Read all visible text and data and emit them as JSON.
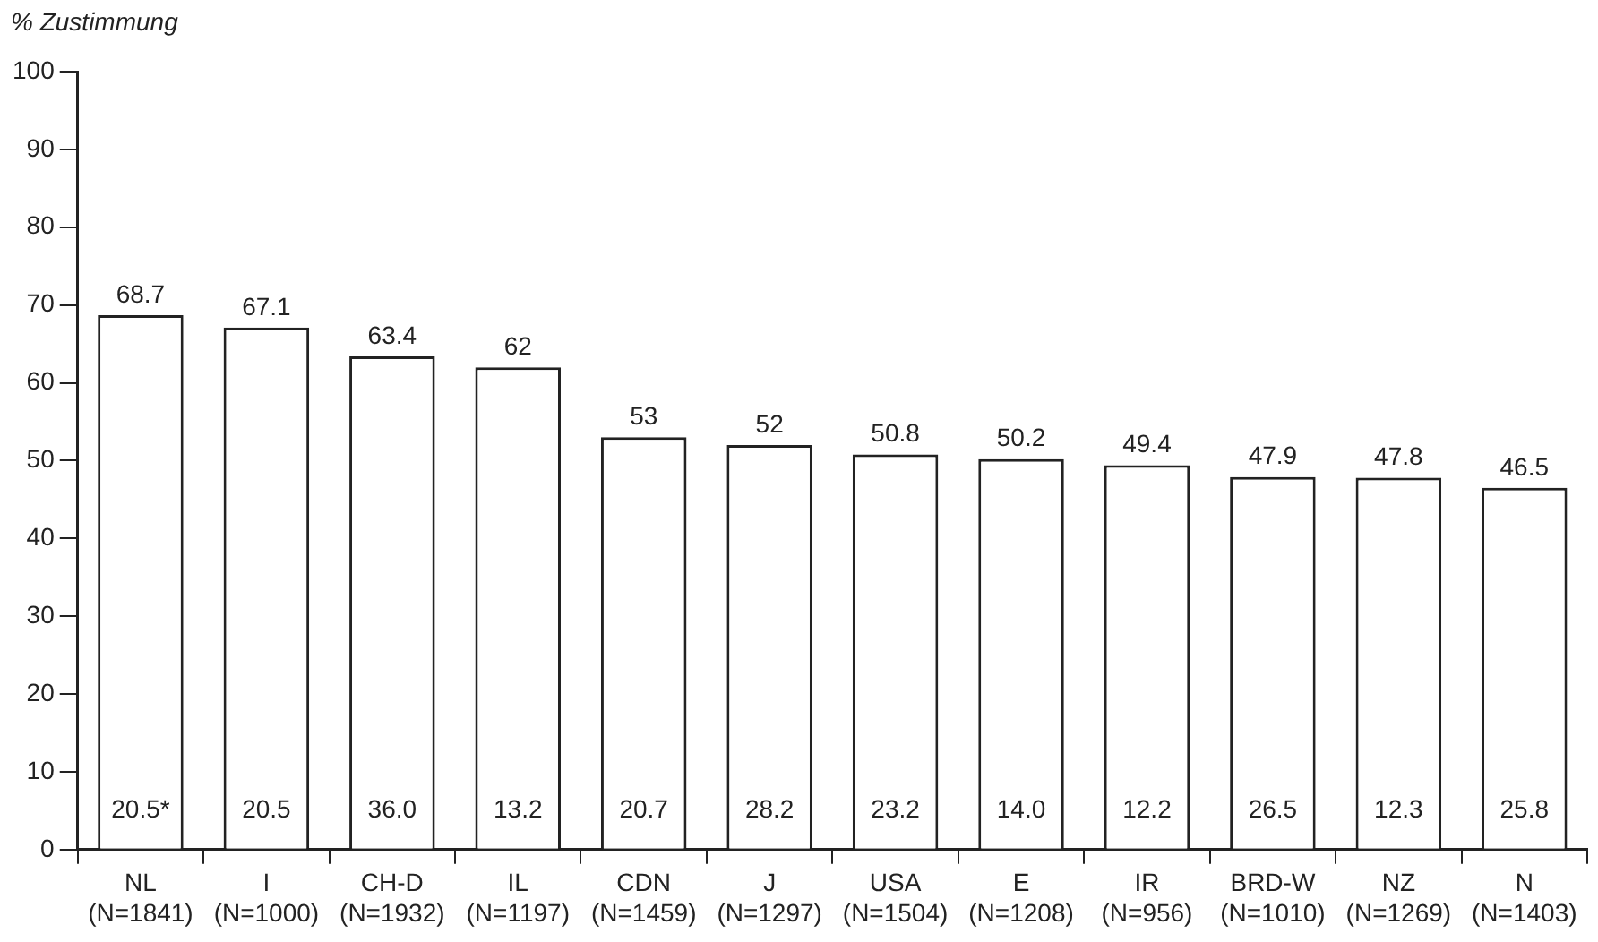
{
  "chart_data": {
    "type": "bar",
    "ylabel": "% Zustimmung",
    "categories": [
      "NL\n(N=1841)",
      "I\n(N=1000)",
      "CH-D\n(N=1932)",
      "IL\n(N=1197)",
      "CDN\n(N=1459)",
      "J\n(N=1297)",
      "USA\n(N=1504)",
      "E\n(N=1208)",
      "IR\n(N=956)",
      "BRD-W\n(N=1010)",
      "NZ\n(N=1269)",
      "N\n(N=1403)"
    ],
    "values": [
      68.7,
      67.1,
      63.4,
      62,
      53,
      52,
      50.8,
      50.2,
      49.4,
      47.9,
      47.8,
      46.5
    ],
    "color": "#ffffff",
    "value_labels": [
      "68.7",
      "67.1",
      "63.4",
      "62",
      "53",
      "52",
      "50.8",
      "50.2",
      "49.4",
      "47.9",
      "47.8",
      "46.5"
    ],
    "annotations": [
      "20.5*",
      "20.5",
      "36.0",
      "13.2",
      "20.7",
      "28.2",
      "23.2",
      "14.0",
      "12.2",
      "26.5",
      "12.3",
      "25.8"
    ],
    "ylim": [
      0,
      100
    ],
    "yticks": [
      0,
      10,
      20,
      30,
      40,
      50,
      60,
      70,
      80,
      90,
      100
    ],
    "grid": false,
    "legend": false
  }
}
